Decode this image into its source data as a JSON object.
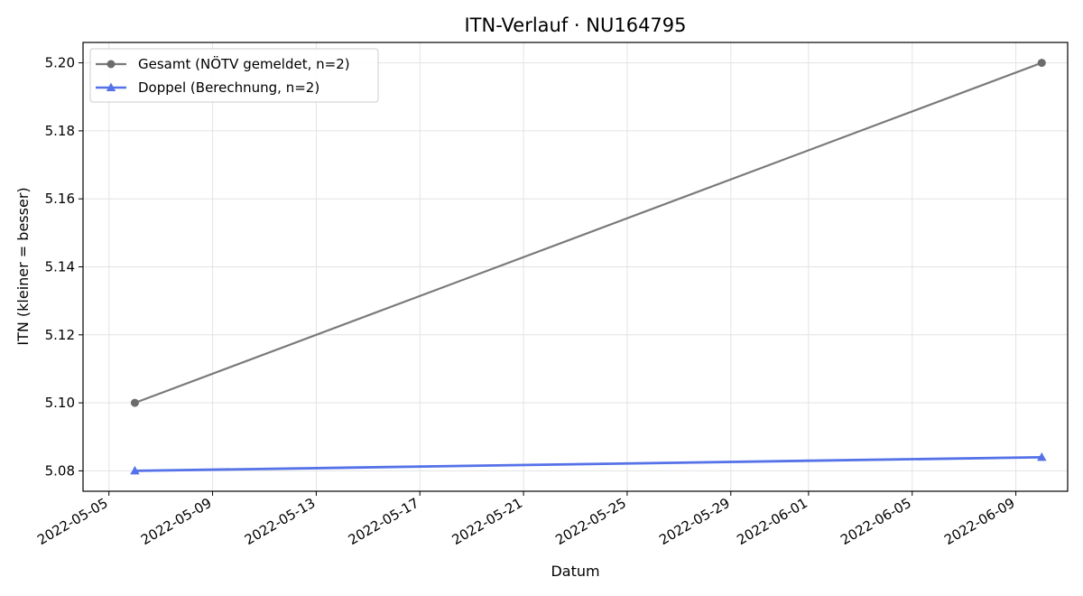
{
  "chart_data": {
    "type": "line",
    "title": "ITN-Verlauf · NU164795",
    "xlabel": "Datum",
    "ylabel": "ITN  (kleiner = besser)",
    "x_ticks": [
      "2022-05-05",
      "2022-05-09",
      "2022-05-13",
      "2022-05-17",
      "2022-05-21",
      "2022-05-25",
      "2022-05-29",
      "2022-06-01",
      "2022-06-05",
      "2022-06-09"
    ],
    "y_ticks": [
      "5.08",
      "5.10",
      "5.12",
      "5.14",
      "5.16",
      "5.18",
      "5.20"
    ],
    "xlim": [
      "2022-05-04",
      "2022-06-11"
    ],
    "ylim": [
      5.074,
      5.206
    ],
    "grid": true,
    "legend_position": "upper-left",
    "series": [
      {
        "name": "Gesamt (NÖTV gemeldet, n=2)",
        "color": "#7a7a7a",
        "marker": "circle",
        "x": [
          "2022-05-06",
          "2022-06-10"
        ],
        "y": [
          5.1,
          5.2
        ]
      },
      {
        "name": "Doppel (Berechnung, n=2)",
        "color": "#5572e8",
        "marker": "triangle",
        "x": [
          "2022-05-06",
          "2022-06-10"
        ],
        "y": [
          5.08,
          5.084
        ]
      }
    ]
  }
}
